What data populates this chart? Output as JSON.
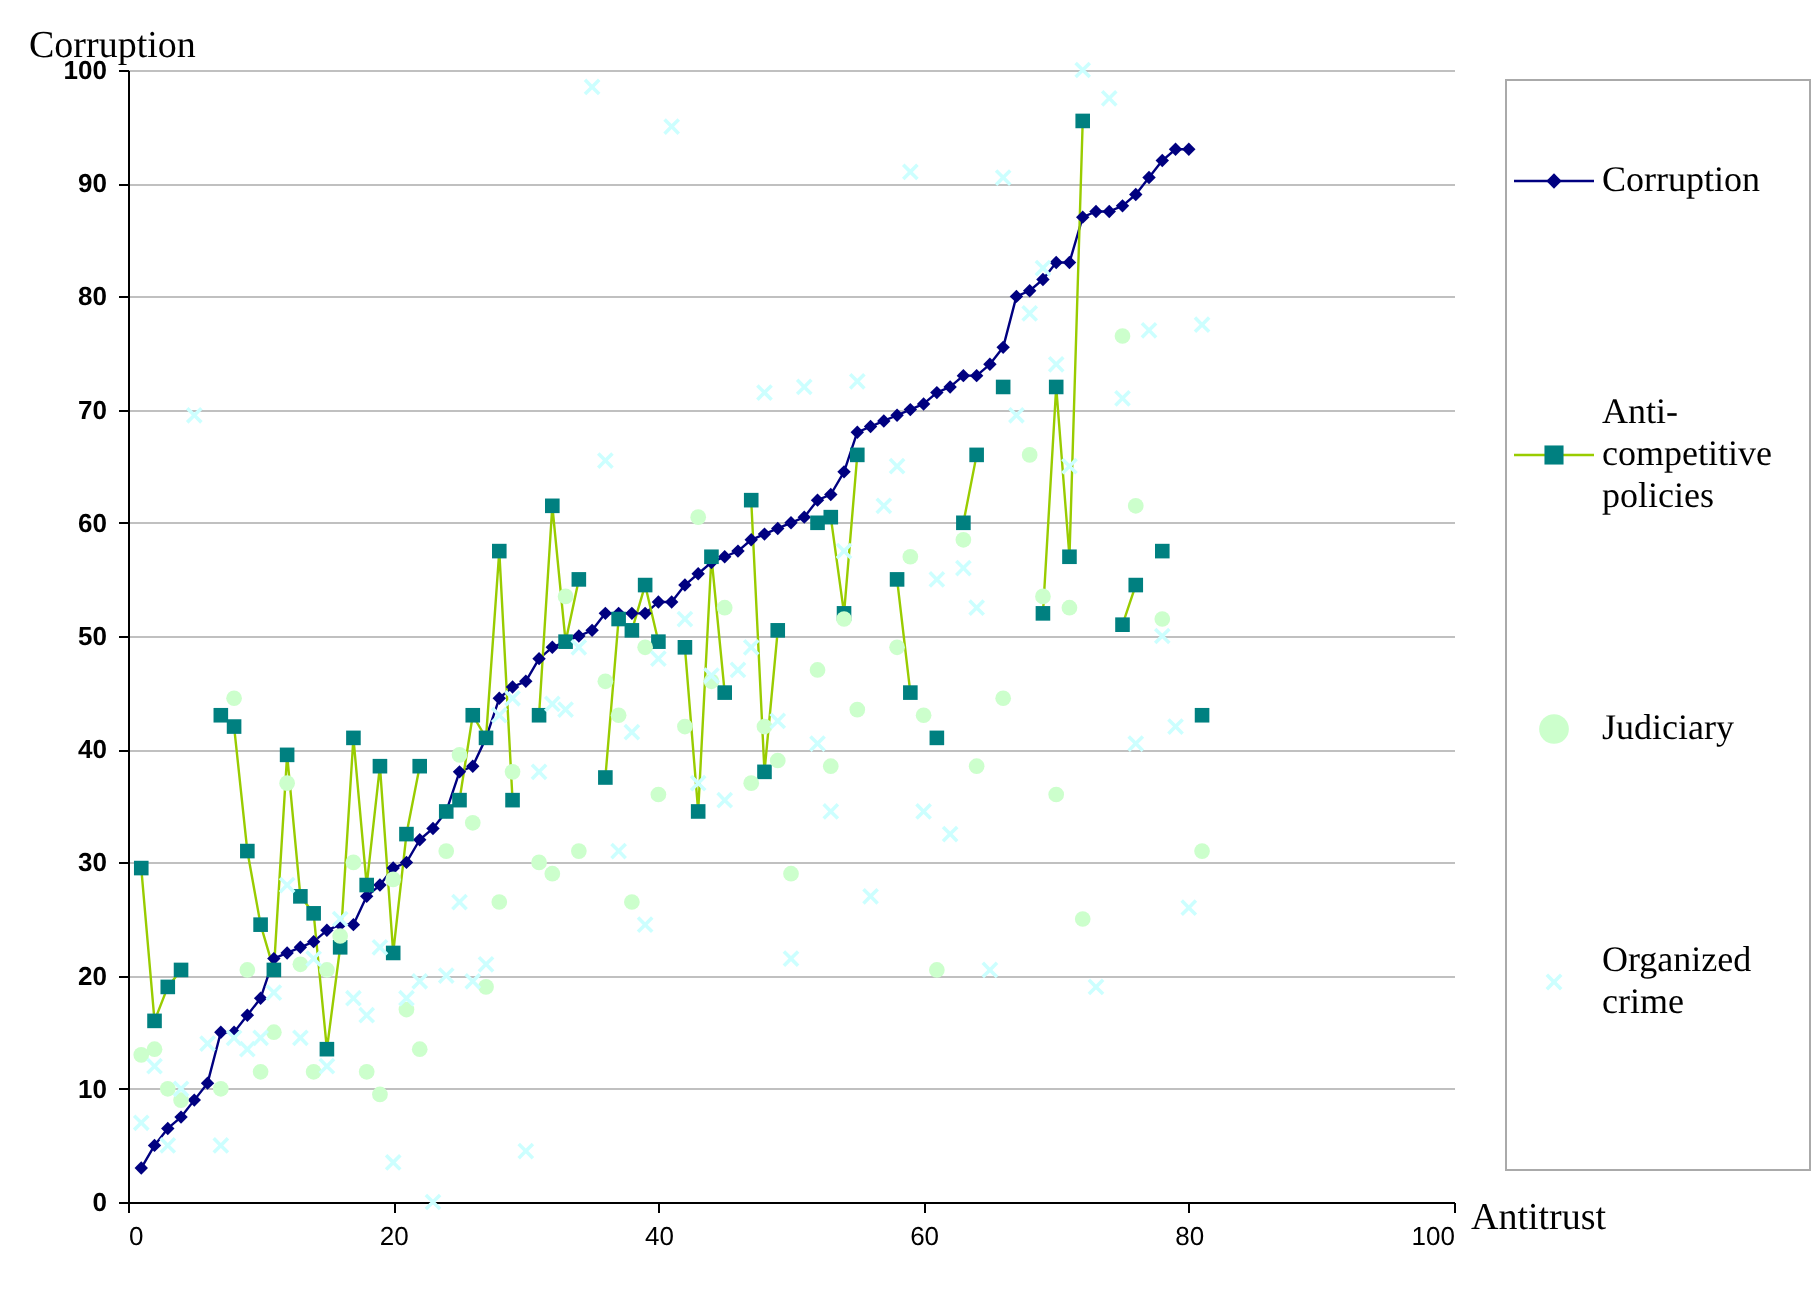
{
  "chart_data": {
    "type": "line",
    "xlabel": "Antitrust",
    "ylabel": "Corruption",
    "x": [
      1,
      2,
      3,
      4,
      5,
      6,
      7,
      8,
      9,
      10,
      11,
      12,
      13,
      14,
      15,
      16,
      17,
      18,
      19,
      20,
      21,
      22,
      23,
      24,
      25,
      26,
      27,
      28,
      29,
      30,
      31,
      32,
      33,
      34,
      35,
      36,
      37,
      38,
      39,
      40,
      41,
      42,
      43,
      44,
      45,
      46,
      47,
      48,
      49,
      50,
      51,
      52,
      53,
      54,
      55,
      56,
      57,
      58,
      59,
      60,
      61,
      62,
      63,
      64,
      65,
      66,
      67,
      68,
      69,
      70,
      71,
      72,
      73,
      74,
      75,
      76,
      77,
      78,
      79,
      80,
      81
    ],
    "series": [
      {
        "name": "Corruption",
        "type": "line",
        "marker": "diamond",
        "color": "#000080",
        "values": [
          3,
          5,
          6.5,
          7.5,
          9,
          10.5,
          15,
          15,
          16.5,
          18,
          21.5,
          22,
          22.5,
          23,
          24,
          24.5,
          24.5,
          27,
          28,
          29.5,
          30,
          32,
          33,
          34.5,
          38,
          38.5,
          41,
          44.5,
          45.5,
          46,
          48,
          49,
          49.5,
          50,
          50.5,
          52,
          52,
          52,
          52,
          53,
          53,
          54.5,
          55.5,
          56.5,
          57,
          57.5,
          58.5,
          59,
          59.5,
          60,
          60.5,
          62,
          62.5,
          64.5,
          68,
          68.5,
          69,
          69.5,
          70,
          70.5,
          71.5,
          72,
          73,
          73,
          74,
          75.5,
          80,
          80.5,
          81.5,
          83,
          83,
          87,
          87.5,
          87.5,
          88,
          89,
          90.5,
          92,
          93,
          93,
          null
        ]
      },
      {
        "name": "Anti-competitive policies",
        "type": "line",
        "marker": "square",
        "color": "#008080",
        "values": [
          29.5,
          16,
          19,
          20.5,
          null,
          null,
          43,
          42,
          31,
          24.5,
          20.5,
          39.5,
          27,
          25.5,
          13.5,
          22.5,
          41,
          28,
          38.5,
          22,
          32.5,
          38.5,
          null,
          34.5,
          35.5,
          43,
          41,
          57.5,
          35.5,
          null,
          43,
          61.5,
          49.5,
          55,
          null,
          37.5,
          51.5,
          50.5,
          54.5,
          49.5,
          null,
          49,
          34.5,
          57,
          45,
          null,
          62,
          38,
          50.5,
          null,
          null,
          60,
          60.5,
          52,
          66,
          null,
          null,
          55,
          45,
          null,
          41,
          null,
          60,
          66,
          null,
          72,
          null,
          null,
          52,
          72,
          57,
          95.5,
          null,
          null,
          51,
          54.5,
          null,
          57.5,
          null,
          null,
          43
        ]
      },
      {
        "name": "Judiciary",
        "type": "scatter",
        "marker": "circle",
        "color": "#ccffcc",
        "values": [
          13,
          13.5,
          10,
          9,
          null,
          null,
          10,
          44.5,
          20.5,
          11.5,
          15,
          37,
          21,
          11.5,
          20.5,
          23.5,
          30,
          11.5,
          9.5,
          28.5,
          17,
          13.5,
          null,
          31,
          39.5,
          33.5,
          19,
          26.5,
          38,
          null,
          30,
          29,
          53.5,
          31,
          null,
          46,
          43,
          26.5,
          49,
          36,
          null,
          42,
          60.5,
          46,
          52.5,
          null,
          37,
          42,
          39,
          29,
          null,
          47,
          38.5,
          51.5,
          43.5,
          null,
          null,
          49,
          57,
          43,
          20.5,
          null,
          58.5,
          38.5,
          null,
          44.5,
          null,
          66,
          53.5,
          36,
          52.5,
          25,
          null,
          null,
          76.5,
          61.5,
          null,
          51.5,
          null,
          null,
          31
        ]
      },
      {
        "name": "Organized crime",
        "type": "scatter",
        "marker": "cross",
        "color": "#ccffff",
        "values": [
          7,
          12,
          5,
          10,
          69.5,
          14,
          5,
          14.5,
          13.5,
          14.5,
          18.5,
          28,
          14.5,
          21.5,
          12,
          25,
          18,
          16.5,
          22.5,
          3.5,
          18,
          19.5,
          0,
          20,
          26.5,
          19.5,
          21,
          43,
          44.5,
          4.5,
          38,
          44,
          43.5,
          49,
          98.5,
          65.5,
          31,
          41.5,
          24.5,
          48,
          95,
          51.5,
          37,
          46.5,
          35.5,
          47,
          49,
          71.5,
          42.5,
          21.5,
          72,
          40.5,
          34.5,
          57.5,
          72.5,
          27,
          61.5,
          65,
          91,
          34.5,
          55,
          32.5,
          56,
          52.5,
          20.5,
          90.5,
          69.5,
          78.5,
          82.5,
          74,
          65,
          100,
          19,
          97.5,
          71,
          40.5,
          77,
          50,
          42,
          26,
          77.5
        ]
      }
    ],
    "xlim": [
      0,
      100
    ],
    "xticks": [
      0,
      20,
      40,
      60,
      80,
      100
    ],
    "ylim": [
      0,
      100
    ],
    "yticks": [
      0,
      10,
      20,
      30,
      40,
      50,
      60,
      70,
      80,
      90,
      100
    ],
    "grid": "y",
    "legend": "right"
  }
}
